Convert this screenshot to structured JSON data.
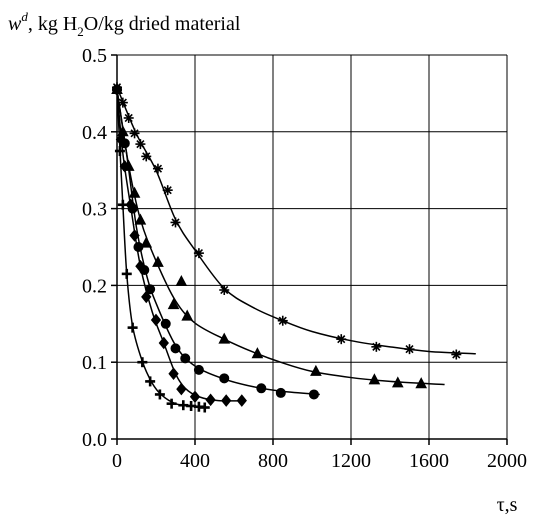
{
  "chart_data": {
    "type": "scatter",
    "ylabel": {
      "var": "w",
      "sup": "d",
      "pre_sub": ", kg H",
      "sub": "2",
      "post_sub": "O/kg dried material"
    },
    "xlabel": "τ,s",
    "xlim": [
      0,
      2000
    ],
    "ylim": [
      0.0,
      0.5
    ],
    "x_ticks": [
      0,
      400,
      800,
      1200,
      1600,
      2000
    ],
    "y_ticks": [
      0.0,
      0.1,
      0.2,
      0.3,
      0.4,
      0.5
    ],
    "x_tick_labels": [
      "0",
      "400",
      "800",
      "1200",
      "1600",
      "2000"
    ],
    "y_tick_labels": [
      "0.0",
      "0.1",
      "0.2",
      "0.3",
      "0.4",
      "0.5"
    ],
    "grid": true,
    "series": [
      {
        "marker": "star",
        "points": [
          [
            0,
            0.458
          ],
          [
            30,
            0.438
          ],
          [
            60,
            0.418
          ],
          [
            90,
            0.398
          ],
          [
            120,
            0.384
          ],
          [
            150,
            0.368
          ],
          [
            210,
            0.352
          ],
          [
            260,
            0.324
          ],
          [
            300,
            0.282
          ],
          [
            420,
            0.242
          ],
          [
            550,
            0.194
          ],
          [
            850,
            0.154
          ],
          [
            1150,
            0.13
          ],
          [
            1330,
            0.12
          ],
          [
            1500,
            0.117
          ],
          [
            1740,
            0.11
          ]
        ],
        "curve": [
          [
            0,
            0.458
          ],
          [
            100,
            0.397
          ],
          [
            200,
            0.35
          ],
          [
            300,
            0.286
          ],
          [
            400,
            0.246
          ],
          [
            550,
            0.196
          ],
          [
            700,
            0.171
          ],
          [
            850,
            0.154
          ],
          [
            1000,
            0.14
          ],
          [
            1200,
            0.128
          ],
          [
            1400,
            0.12
          ],
          [
            1600,
            0.114
          ],
          [
            1840,
            0.111
          ]
        ]
      },
      {
        "marker": "triangle",
        "points": [
          [
            0,
            0.455
          ],
          [
            30,
            0.4
          ],
          [
            60,
            0.355
          ],
          [
            90,
            0.32
          ],
          [
            120,
            0.285
          ],
          [
            150,
            0.255
          ],
          [
            210,
            0.23
          ],
          [
            290,
            0.175
          ],
          [
            330,
            0.205
          ],
          [
            360,
            0.16
          ],
          [
            550,
            0.13
          ],
          [
            720,
            0.111
          ],
          [
            1020,
            0.088
          ],
          [
            1320,
            0.077
          ],
          [
            1440,
            0.073
          ],
          [
            1560,
            0.072
          ]
        ],
        "curve": [
          [
            0,
            0.455
          ],
          [
            60,
            0.356
          ],
          [
            120,
            0.286
          ],
          [
            200,
            0.232
          ],
          [
            300,
            0.18
          ],
          [
            400,
            0.151
          ],
          [
            550,
            0.13
          ],
          [
            700,
            0.113
          ],
          [
            850,
            0.099
          ],
          [
            1000,
            0.088
          ],
          [
            1200,
            0.08
          ],
          [
            1400,
            0.075
          ],
          [
            1600,
            0.072
          ],
          [
            1680,
            0.071
          ]
        ]
      },
      {
        "marker": "circle",
        "points": [
          [
            0,
            0.455
          ],
          [
            40,
            0.385
          ],
          [
            80,
            0.3
          ],
          [
            110,
            0.25
          ],
          [
            140,
            0.22
          ],
          [
            170,
            0.195
          ],
          [
            250,
            0.15
          ],
          [
            300,
            0.118
          ],
          [
            350,
            0.105
          ],
          [
            420,
            0.09
          ],
          [
            550,
            0.079
          ],
          [
            740,
            0.066
          ],
          [
            840,
            0.06
          ],
          [
            1010,
            0.058
          ]
        ],
        "curve": [
          [
            0,
            0.455
          ],
          [
            50,
            0.37
          ],
          [
            100,
            0.275
          ],
          [
            150,
            0.215
          ],
          [
            200,
            0.177
          ],
          [
            300,
            0.122
          ],
          [
            400,
            0.095
          ],
          [
            550,
            0.078
          ],
          [
            700,
            0.068
          ],
          [
            850,
            0.062
          ],
          [
            1040,
            0.058
          ]
        ]
      },
      {
        "marker": "diamond",
        "points": [
          [
            0,
            0.455
          ],
          [
            20,
            0.39
          ],
          [
            40,
            0.355
          ],
          [
            70,
            0.305
          ],
          [
            90,
            0.265
          ],
          [
            120,
            0.225
          ],
          [
            150,
            0.185
          ],
          [
            200,
            0.155
          ],
          [
            240,
            0.125
          ],
          [
            290,
            0.085
          ],
          [
            330,
            0.065
          ],
          [
            400,
            0.055
          ],
          [
            480,
            0.051
          ],
          [
            560,
            0.05
          ],
          [
            640,
            0.05
          ]
        ],
        "curve": [
          [
            0,
            0.455
          ],
          [
            30,
            0.372
          ],
          [
            70,
            0.303
          ],
          [
            120,
            0.225
          ],
          [
            180,
            0.166
          ],
          [
            240,
            0.125
          ],
          [
            300,
            0.085
          ],
          [
            350,
            0.066
          ],
          [
            420,
            0.055
          ],
          [
            520,
            0.05
          ],
          [
            660,
            0.05
          ]
        ]
      },
      {
        "marker": "plus",
        "points": [
          [
            0,
            0.455
          ],
          [
            15,
            0.375
          ],
          [
            30,
            0.305
          ],
          [
            50,
            0.215
          ],
          [
            80,
            0.145
          ],
          [
            130,
            0.1
          ],
          [
            170,
            0.075
          ],
          [
            220,
            0.058
          ],
          [
            280,
            0.046
          ],
          [
            340,
            0.044
          ],
          [
            380,
            0.043
          ],
          [
            420,
            0.042
          ],
          [
            450,
            0.041
          ]
        ],
        "curve": [
          [
            0,
            0.455
          ],
          [
            15,
            0.378
          ],
          [
            30,
            0.305
          ],
          [
            50,
            0.215
          ],
          [
            80,
            0.147
          ],
          [
            130,
            0.101
          ],
          [
            180,
            0.073
          ],
          [
            230,
            0.057
          ],
          [
            300,
            0.046
          ],
          [
            380,
            0.043
          ],
          [
            460,
            0.041
          ]
        ]
      }
    ]
  }
}
